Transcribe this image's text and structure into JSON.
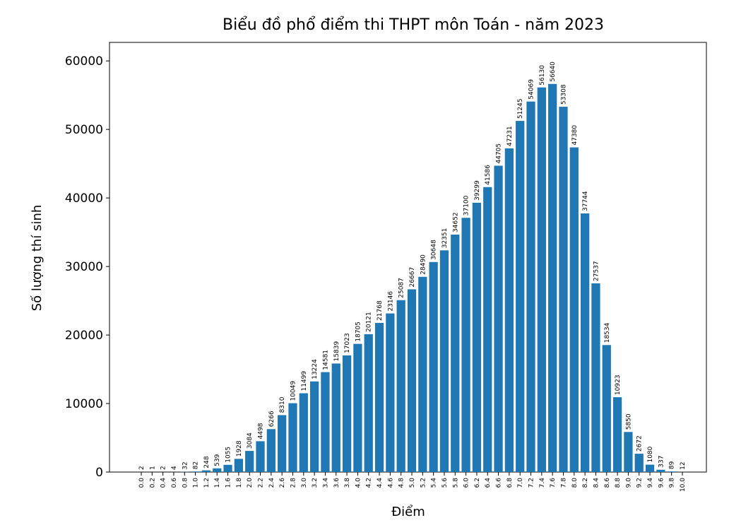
{
  "chart_data": {
    "type": "bar",
    "title": "Biểu đồ phổ điểm thi THPT môn Toán - năm 2023",
    "x_label": "Điểm",
    "y_label": "Số lượng thí sinh",
    "categories": [
      "0.0",
      "0.2",
      "0.4",
      "0.6",
      "0.8",
      "1.0",
      "1.2",
      "1.4",
      "1.6",
      "1.8",
      "2.0",
      "2.2",
      "2.4",
      "2.6",
      "2.8",
      "3.0",
      "3.2",
      "3.4",
      "3.6",
      "3.8",
      "4.0",
      "4.2",
      "4.4",
      "4.6",
      "4.8",
      "5.0",
      "5.2",
      "5.4",
      "5.6",
      "5.8",
      "6.0",
      "6.2",
      "6.4",
      "6.6",
      "6.8",
      "7.0",
      "7.2",
      "7.4",
      "7.6",
      "7.8",
      "8.0",
      "8.2",
      "8.4",
      "8.6",
      "8.8",
      "9.0",
      "9.2",
      "9.4",
      "9.6",
      "9.8",
      "10.0"
    ],
    "values": [
      2,
      1,
      2,
      4,
      32,
      82,
      248,
      539,
      1055,
      1928,
      3084,
      4498,
      6266,
      8310,
      10049,
      11499,
      13224,
      14581,
      15839,
      17023,
      18705,
      20121,
      21768,
      23146,
      25087,
      26667,
      28490,
      30648,
      32351,
      34652,
      37100,
      39299,
      41586,
      44705,
      47231,
      51245,
      54069,
      56130,
      56640,
      53308,
      47380,
      37744,
      27537,
      18534,
      10923,
      5850,
      2672,
      1080,
      337,
      89,
      12
    ],
    "color": "#1f77b4",
    "ylim": [
      0,
      62700
    ],
    "yticks": [
      0,
      10000,
      20000,
      30000,
      40000,
      50000,
      60000
    ],
    "grid": false
  }
}
